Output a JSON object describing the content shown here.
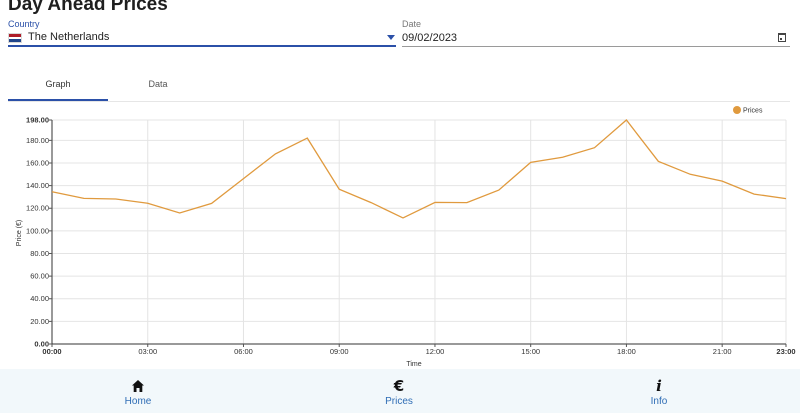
{
  "page": {
    "title": "Day Ahead Prices"
  },
  "country": {
    "label": "Country",
    "value": "The Netherlands",
    "flag": "netherlands-flag"
  },
  "date": {
    "label": "Date",
    "value": "09/02/2023"
  },
  "tabs": [
    {
      "label": "Graph",
      "active": true
    },
    {
      "label": "Data",
      "active": false
    }
  ],
  "chart_data": {
    "type": "line",
    "title": "",
    "xlabel": "Time",
    "ylabel": "Price (€)",
    "ylim": [
      0,
      198
    ],
    "y_ticks": [
      "0.00",
      "20.00",
      "40.00",
      "60.00",
      "80.00",
      "100.00",
      "120.00",
      "140.00",
      "160.00",
      "180.00",
      "198.00"
    ],
    "x_ticks": [
      "00:00",
      "03:00",
      "06:00",
      "09:00",
      "12:00",
      "15:00",
      "18:00",
      "21:00",
      "23:00"
    ],
    "x": [
      0,
      1,
      2,
      3,
      4,
      5,
      6,
      7,
      8,
      9,
      10,
      11,
      12,
      13,
      14,
      15,
      16,
      17,
      18,
      19,
      20,
      21,
      22,
      23
    ],
    "series": [
      {
        "name": "Prices",
        "color": "#e09a3e",
        "values": [
          134.5,
          128.7,
          128.2,
          124.5,
          115.8,
          124.3,
          146.2,
          168.0,
          182.0,
          136.8,
          125.0,
          111.5,
          125.2,
          125.0,
          136.0,
          160.5,
          165.0,
          173.5,
          198.0,
          161.5,
          150.0,
          144.0,
          132.5,
          128.5
        ]
      }
    ],
    "grid": true,
    "legend": "top-right"
  },
  "nav": {
    "home": {
      "label": "Home",
      "icon": "home-icon"
    },
    "prices": {
      "label": "Prices",
      "icon": "euro-icon",
      "glyph": "€"
    },
    "info": {
      "label": "Info",
      "icon": "info-icon",
      "glyph": "i"
    }
  },
  "colors": {
    "accent": "#2b50a8",
    "line": "#e09a3e",
    "nav_bg": "#f2f8fb",
    "nav_text": "#2f6db5"
  }
}
